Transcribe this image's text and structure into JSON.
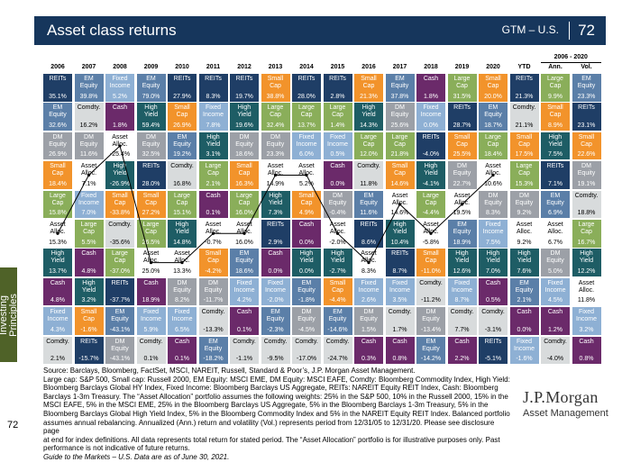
{
  "header": {
    "title": "Asset class returns",
    "subtitle": "GTM – U.S.",
    "page": "72"
  },
  "side_tab": "Investing\nPrinciples",
  "page_number": "72",
  "logo": {
    "line1": "J.P.Morgan",
    "line2": "Asset Management"
  },
  "footnote": {
    "lines": [
      "Source: Barclays, Bloomberg, FactSet, MSCI, NAREIT, Russell, Standard & Poor’s, J.P. Morgan Asset Management.",
      "Large cap: S&P 500, Small cap: Russell 2000, EM Equity: MSCI EME, DM Equity: MSCI EAFE, Comdty: Bloomberg Commodity Index, High Yield:",
      "Bloomberg Barclays Global HY Index, Fixed Income: Bloomberg Barclays US Aggregate, REITs: NAREIT Equity REIT Index, Cash: Bloomberg",
      "Barclays 1-3m Treasury. The “Asset Allocation” portfolio assumes the following weights: 25% in the S&P 500, 10% in the Russell 2000, 15% in the",
      "MSCI EAFE, 5% in the MSCI EME, 25% in the Bloomberg Barclays US Aggregate, 5% in the Bloomberg Barclays 1-3m Treasury, 5% in the",
      "Bloomberg Barclays Global High Yield Index, 5% in the Bloomberg Commodity Index and 5% in the NAREIT Equity REIT Index. Balanced portfolio",
      "assumes annual rebalancing. Annualized (Ann.) return and volatility (Vol.) represents period from 12/31/05 to 12/31/20. Please see disclosure page",
      "at end for index definitions. All data represents total return for stated period. The “Asset Allocation” portfolio is for illustrative purposes only. Past",
      "performance is not indicative of future returns."
    ],
    "guide": "Guide to the Markets – U.S. Data are as of June 30, 2021."
  },
  "colors": {
    "REITs": "#1f3e66",
    "EM Equity": "#5b7fa8",
    "Fixed Income": "#8eb0d4",
    "Small Cap": "#f2932b",
    "High Yield": "#1e5d65",
    "Large Cap": "#8aae5a",
    "DM Equity": "#9ca0a7",
    "Cash": "#6b2a6a",
    "Comdty.": "#d8dbdc",
    "Asset Alloc.": "#ffffff"
  },
  "chart_data": {
    "type": "table",
    "title": "Asset class returns",
    "period_label": "2006 - 2020",
    "columns": [
      "2006",
      "2007",
      "2008",
      "2009",
      "2010",
      "2011",
      "2012",
      "2013",
      "2014",
      "2015",
      "2016",
      "2017",
      "2018",
      "2019",
      "2020",
      "YTD",
      "Ann.",
      "Vol."
    ],
    "grid": [
      [
        [
          "REITs",
          "35.1%"
        ],
        [
          "EM Equity",
          "39.8%"
        ],
        [
          "Fixed Income",
          "5.2%"
        ],
        [
          "EM Equity",
          "79.0%"
        ],
        [
          "REITs",
          "27.9%"
        ],
        [
          "REITs",
          "8.3%"
        ],
        [
          "REITs",
          "19.7%"
        ],
        [
          "Small Cap",
          "38.8%"
        ],
        [
          "REITs",
          "28.0%"
        ],
        [
          "REITs",
          "2.8%"
        ],
        [
          "Small Cap",
          "21.3%"
        ],
        [
          "EM Equity",
          "37.8%"
        ],
        [
          "Cash",
          "1.8%"
        ],
        [
          "Large Cap",
          "31.5%"
        ],
        [
          "Small Cap",
          "20.0%"
        ],
        [
          "REITs",
          "21.3%"
        ],
        [
          "Large Cap",
          "9.9%"
        ],
        [
          "EM Equity",
          "23.3%"
        ]
      ],
      [
        [
          "EM Equity",
          "32.6%"
        ],
        [
          "Comdty.",
          "16.2%"
        ],
        [
          "Cash",
          "1.8%"
        ],
        [
          "High Yield",
          "59.4%"
        ],
        [
          "Small Cap",
          "26.9%"
        ],
        [
          "Fixed Income",
          "7.8%"
        ],
        [
          "High Yield",
          "19.6%"
        ],
        [
          "Large Cap",
          "32.4%"
        ],
        [
          "Large Cap",
          "13.7%"
        ],
        [
          "Large Cap",
          "1.4%"
        ],
        [
          "High Yield",
          "14.3%"
        ],
        [
          "DM Equity",
          "25.6%"
        ],
        [
          "Fixed Income",
          "0.0%"
        ],
        [
          "REITs",
          "28.7%"
        ],
        [
          "EM Equity",
          "18.7%"
        ],
        [
          "Comdty.",
          "21.1%"
        ],
        [
          "Small Cap",
          "8.9%"
        ],
        [
          "REITs",
          "23.1%"
        ]
      ],
      [
        [
          "DM Equity",
          "26.9%"
        ],
        [
          "DM Equity",
          "11.6%"
        ],
        [
          "Asset Alloc.",
          "-25.4%"
        ],
        [
          "DM Equity",
          "32.5%"
        ],
        [
          "EM Equity",
          "19.2%"
        ],
        [
          "High Yield",
          "3.1%"
        ],
        [
          "DM Equity",
          "18.6%"
        ],
        [
          "DM Equity",
          "23.3%"
        ],
        [
          "Fixed Income",
          "6.0%"
        ],
        [
          "Fixed Income",
          "0.5%"
        ],
        [
          "Large Cap",
          "12.0%"
        ],
        [
          "Large Cap",
          "21.8%"
        ],
        [
          "REITs",
          "-4.0%"
        ],
        [
          "Small Cap",
          "25.5%"
        ],
        [
          "Large Cap",
          "18.4%"
        ],
        [
          "Small Cap",
          "17.5%"
        ],
        [
          "High Yield",
          "7.5%"
        ],
        [
          "Small Cap",
          "22.6%"
        ]
      ],
      [
        [
          "Small Cap",
          "18.4%"
        ],
        [
          "Asset Alloc.",
          "7.1%"
        ],
        [
          "High Yield",
          "-26.9%"
        ],
        [
          "REITs",
          "28.0%"
        ],
        [
          "Comdty.",
          "16.8%"
        ],
        [
          "Large Cap",
          "2.1%"
        ],
        [
          "Small Cap",
          "16.3%"
        ],
        [
          "Asset Alloc.",
          "14.9%"
        ],
        [
          "Asset Alloc.",
          "5.2%"
        ],
        [
          "Cash",
          "0.0%"
        ],
        [
          "Comdty.",
          "11.8%"
        ],
        [
          "Small Cap",
          "14.6%"
        ],
        [
          "High Yield",
          "-4.1%"
        ],
        [
          "DM Equity",
          "22.7%"
        ],
        [
          "Asset Alloc.",
          "10.6%"
        ],
        [
          "Large Cap",
          "15.3%"
        ],
        [
          "REITs",
          "7.1%"
        ],
        [
          "DM Equity",
          "19.1%"
        ]
      ],
      [
        [
          "Large Cap",
          "15.8%"
        ],
        [
          "Fixed Income",
          "7.0%"
        ],
        [
          "Small Cap",
          "-33.8%"
        ],
        [
          "Small Cap",
          "27.2%"
        ],
        [
          "Large Cap",
          "15.1%"
        ],
        [
          "Cash",
          "0.1%"
        ],
        [
          "Large Cap",
          "16.0%"
        ],
        [
          "High Yield",
          "7.3%"
        ],
        [
          "Small Cap",
          "4.9%"
        ],
        [
          "DM Equity",
          "-0.4%"
        ],
        [
          "EM Equity",
          "11.6%"
        ],
        [
          "Asset Alloc.",
          "14.6%"
        ],
        [
          "Large Cap",
          "-4.4%"
        ],
        [
          "Asset Alloc.",
          "19.5%"
        ],
        [
          "DM Equity",
          "8.3%"
        ],
        [
          "DM Equity",
          "9.2%"
        ],
        [
          "EM Equity",
          "6.9%"
        ],
        [
          "Comdty.",
          "18.8%"
        ]
      ],
      [
        [
          "Asset Alloc.",
          "15.3%"
        ],
        [
          "Large Cap",
          "5.5%"
        ],
        [
          "Comdty.",
          "-35.6%"
        ],
        [
          "Large Cap",
          "26.5%"
        ],
        [
          "High Yield",
          "14.8%"
        ],
        [
          "Asset Alloc.",
          "-0.7%"
        ],
        [
          "Asset Alloc.",
          "16.0%"
        ],
        [
          "REITs",
          "2.9%"
        ],
        [
          "Cash",
          "0.0%"
        ],
        [
          "Asset Alloc.",
          "-2.0%"
        ],
        [
          "REITs",
          "8.6%"
        ],
        [
          "High Yield",
          "10.4%"
        ],
        [
          "Asset Alloc.",
          "-5.8%"
        ],
        [
          "EM Equity",
          "18.9%"
        ],
        [
          "Fixed Income",
          "7.5%"
        ],
        [
          "Asset Alloc.",
          "9.2%"
        ],
        [
          "Asset Alloc.",
          "6.7%"
        ],
        [
          "Large Cap",
          "16.7%"
        ]
      ],
      [
        [
          "High Yield",
          "13.7%"
        ],
        [
          "Cash",
          "4.8%"
        ],
        [
          "Large Cap",
          "-37.0%"
        ],
        [
          "Asset Alloc.",
          "25.0%"
        ],
        [
          "Asset Alloc.",
          "13.3%"
        ],
        [
          "Small Cap",
          "-4.2%"
        ],
        [
          "EM Equity",
          "18.6%"
        ],
        [
          "Cash",
          "0.0%"
        ],
        [
          "High Yield",
          "0.0%"
        ],
        [
          "High Yield",
          "-2.7%"
        ],
        [
          "Asset Alloc.",
          "8.3%"
        ],
        [
          "REITs",
          "8.7%"
        ],
        [
          "Small Cap",
          "-11.0%"
        ],
        [
          "High Yield",
          "12.6%"
        ],
        [
          "High Yield",
          "7.0%"
        ],
        [
          "High Yield",
          "7.6%"
        ],
        [
          "DM Equity",
          "5.0%"
        ],
        [
          "High Yield",
          "12.2%"
        ]
      ],
      [
        [
          "Cash",
          "4.8%"
        ],
        [
          "High Yield",
          "3.2%"
        ],
        [
          "REITs",
          "-37.7%"
        ],
        [
          "Cash",
          "18.9%"
        ],
        [
          "DM Equity",
          "8.2%"
        ],
        [
          "DM Equity",
          "-11.7%"
        ],
        [
          "Fixed Income",
          "4.2%"
        ],
        [
          "Fixed Income",
          "-2.0%"
        ],
        [
          "EM Equity",
          "-1.8%"
        ],
        [
          "Small Cap",
          "-4.4%"
        ],
        [
          "Fixed Income",
          "2.6%"
        ],
        [
          "Fixed Income",
          "3.5%"
        ],
        [
          "Comdty.",
          "-11.2%"
        ],
        [
          "Fixed Income",
          "8.7%"
        ],
        [
          "Cash",
          "0.5%"
        ],
        [
          "EM Equity",
          "2.1%"
        ],
        [
          "Fixed Income",
          "4.5%"
        ],
        [
          "Asset Alloc.",
          "11.8%"
        ]
      ],
      [
        [
          "Fixed Income",
          "4.3%"
        ],
        [
          "Small Cap",
          "-1.6%"
        ],
        [
          "EM Equity",
          "-43.1%"
        ],
        [
          "Fixed Income",
          "5.9%"
        ],
        [
          "Fixed Income",
          "6.5%"
        ],
        [
          "Comdty.",
          "-13.3%"
        ],
        [
          "Cash",
          "0.1%"
        ],
        [
          "EM Equity",
          "-2.3%"
        ],
        [
          "DM Equity",
          "-4.5%"
        ],
        [
          "EM Equity",
          "-14.6%"
        ],
        [
          "DM Equity",
          "1.5%"
        ],
        [
          "Comdty.",
          "1.7%"
        ],
        [
          "DM Equity",
          "-13.4%"
        ],
        [
          "Comdty.",
          "7.7%"
        ],
        [
          "Comdty.",
          "-3.1%"
        ],
        [
          "Cash",
          "0.0%"
        ],
        [
          "Cash",
          "1.2%"
        ],
        [
          "Fixed Income",
          "3.2%"
        ]
      ],
      [
        [
          "Comdty.",
          "2.1%"
        ],
        [
          "REITs",
          "-15.7%"
        ],
        [
          "DM Equity",
          "-43.1%"
        ],
        [
          "Comdty.",
          "0.1%"
        ],
        [
          "Cash",
          "0.1%"
        ],
        [
          "EM Equity",
          "-18.2%"
        ],
        [
          "Comdty.",
          "-1.1%"
        ],
        [
          "Comdty.",
          "-9.5%"
        ],
        [
          "Comdty.",
          "-17.0%"
        ],
        [
          "Comdty.",
          "-24.7%"
        ],
        [
          "Cash",
          "0.3%"
        ],
        [
          "Cash",
          "0.8%"
        ],
        [
          "EM Equity",
          "-14.2%"
        ],
        [
          "Cash",
          "2.2%"
        ],
        [
          "REITs",
          "-5.1%"
        ],
        [
          "Fixed Income",
          "-1.6%"
        ],
        [
          "Comdty.",
          "-4.0%"
        ],
        [
          "Cash",
          "0.8%"
        ]
      ]
    ]
  }
}
